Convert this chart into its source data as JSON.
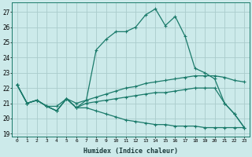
{
  "xlabel": "Humidex (Indice chaleur)",
  "bg_color": "#cceaea",
  "grid_color": "#aacccc",
  "line_color": "#1a7a6a",
  "xlim": [
    -0.5,
    23.5
  ],
  "ylim": [
    18.8,
    27.6
  ],
  "xticks": [
    0,
    1,
    2,
    3,
    4,
    5,
    6,
    7,
    8,
    9,
    10,
    11,
    12,
    13,
    14,
    15,
    16,
    17,
    18,
    19,
    20,
    21,
    22,
    23
  ],
  "yticks": [
    19,
    20,
    21,
    22,
    23,
    24,
    25,
    26,
    27
  ],
  "line1": {
    "x": [
      0,
      1,
      2,
      3,
      4,
      5,
      6,
      7,
      8,
      9,
      10,
      11,
      12,
      13,
      14,
      15,
      16,
      17,
      18,
      19,
      20,
      21,
      22,
      23
    ],
    "y": [
      22.2,
      21.0,
      21.2,
      20.8,
      20.5,
      21.3,
      20.7,
      21.2,
      24.5,
      25.2,
      25.7,
      25.7,
      26.0,
      26.8,
      27.2,
      26.1,
      26.7,
      25.4,
      23.3,
      23.0,
      22.6,
      21.0,
      20.3,
      19.4
    ]
  },
  "line2": {
    "x": [
      0,
      1,
      2,
      3,
      4,
      5,
      6,
      7,
      8,
      9,
      10,
      11,
      12,
      13,
      14,
      15,
      16,
      17,
      18,
      19,
      20,
      21,
      22,
      23
    ],
    "y": [
      22.2,
      21.0,
      21.2,
      20.8,
      20.8,
      21.3,
      21.0,
      21.2,
      21.4,
      21.6,
      21.8,
      22.0,
      22.1,
      22.3,
      22.4,
      22.5,
      22.6,
      22.7,
      22.8,
      22.8,
      22.8,
      22.7,
      22.5,
      22.4
    ]
  },
  "line3": {
    "x": [
      0,
      1,
      2,
      3,
      4,
      5,
      6,
      7,
      8,
      9,
      10,
      11,
      12,
      13,
      14,
      15,
      16,
      17,
      18,
      19,
      20,
      21,
      22,
      23
    ],
    "y": [
      22.2,
      21.0,
      21.2,
      20.8,
      20.5,
      21.3,
      20.7,
      21.0,
      21.1,
      21.2,
      21.3,
      21.4,
      21.5,
      21.6,
      21.7,
      21.7,
      21.8,
      21.9,
      22.0,
      22.0,
      22.0,
      21.0,
      20.3,
      19.4
    ]
  },
  "line4": {
    "x": [
      0,
      1,
      2,
      3,
      4,
      5,
      6,
      7,
      8,
      9,
      10,
      11,
      12,
      13,
      14,
      15,
      16,
      17,
      18,
      19,
      20,
      21,
      22,
      23
    ],
    "y": [
      22.2,
      21.0,
      21.2,
      20.8,
      20.5,
      21.3,
      20.7,
      20.7,
      20.5,
      20.3,
      20.1,
      19.9,
      19.8,
      19.7,
      19.6,
      19.6,
      19.5,
      19.5,
      19.5,
      19.4,
      19.4,
      19.4,
      19.4,
      19.4
    ]
  }
}
